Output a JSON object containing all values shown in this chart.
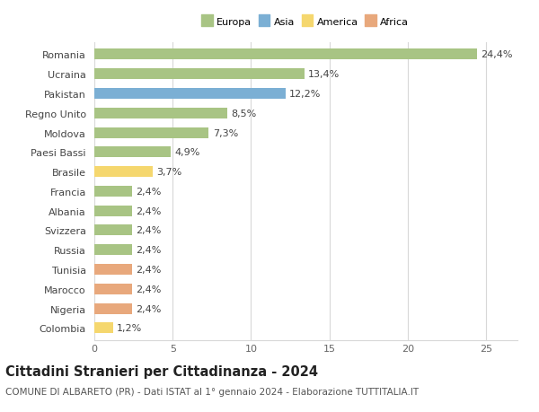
{
  "countries": [
    "Romania",
    "Ucraina",
    "Pakistan",
    "Regno Unito",
    "Moldova",
    "Paesi Bassi",
    "Brasile",
    "Francia",
    "Albania",
    "Svizzera",
    "Russia",
    "Tunisia",
    "Marocco",
    "Nigeria",
    "Colombia"
  ],
  "values": [
    24.4,
    13.4,
    12.2,
    8.5,
    7.3,
    4.9,
    3.7,
    2.4,
    2.4,
    2.4,
    2.4,
    2.4,
    2.4,
    2.4,
    1.2
  ],
  "labels": [
    "24,4%",
    "13,4%",
    "12,2%",
    "8,5%",
    "7,3%",
    "4,9%",
    "3,7%",
    "2,4%",
    "2,4%",
    "2,4%",
    "2,4%",
    "2,4%",
    "2,4%",
    "2,4%",
    "1,2%"
  ],
  "colors": [
    "#a8c484",
    "#a8c484",
    "#7bafd4",
    "#a8c484",
    "#a8c484",
    "#a8c484",
    "#f5d76e",
    "#a8c484",
    "#a8c484",
    "#a8c484",
    "#a8c484",
    "#e8a87c",
    "#e8a87c",
    "#e8a87c",
    "#f5d76e"
  ],
  "legend_labels": [
    "Europa",
    "Asia",
    "America",
    "Africa"
  ],
  "legend_colors": [
    "#a8c484",
    "#7bafd4",
    "#f5d76e",
    "#e8a87c"
  ],
  "xlim": [
    0,
    27
  ],
  "xticks": [
    0,
    5,
    10,
    15,
    20,
    25
  ],
  "title": "Cittadini Stranieri per Cittadinanza - 2024",
  "subtitle": "COMUNE DI ALBARETO (PR) - Dati ISTAT al 1° gennaio 2024 - Elaborazione TUTTITALIA.IT",
  "bg_color": "#ffffff",
  "grid_color": "#d8d8d8",
  "bar_height": 0.55,
  "label_fontsize": 8,
  "tick_fontsize": 8,
  "title_fontsize": 10.5,
  "subtitle_fontsize": 7.5
}
